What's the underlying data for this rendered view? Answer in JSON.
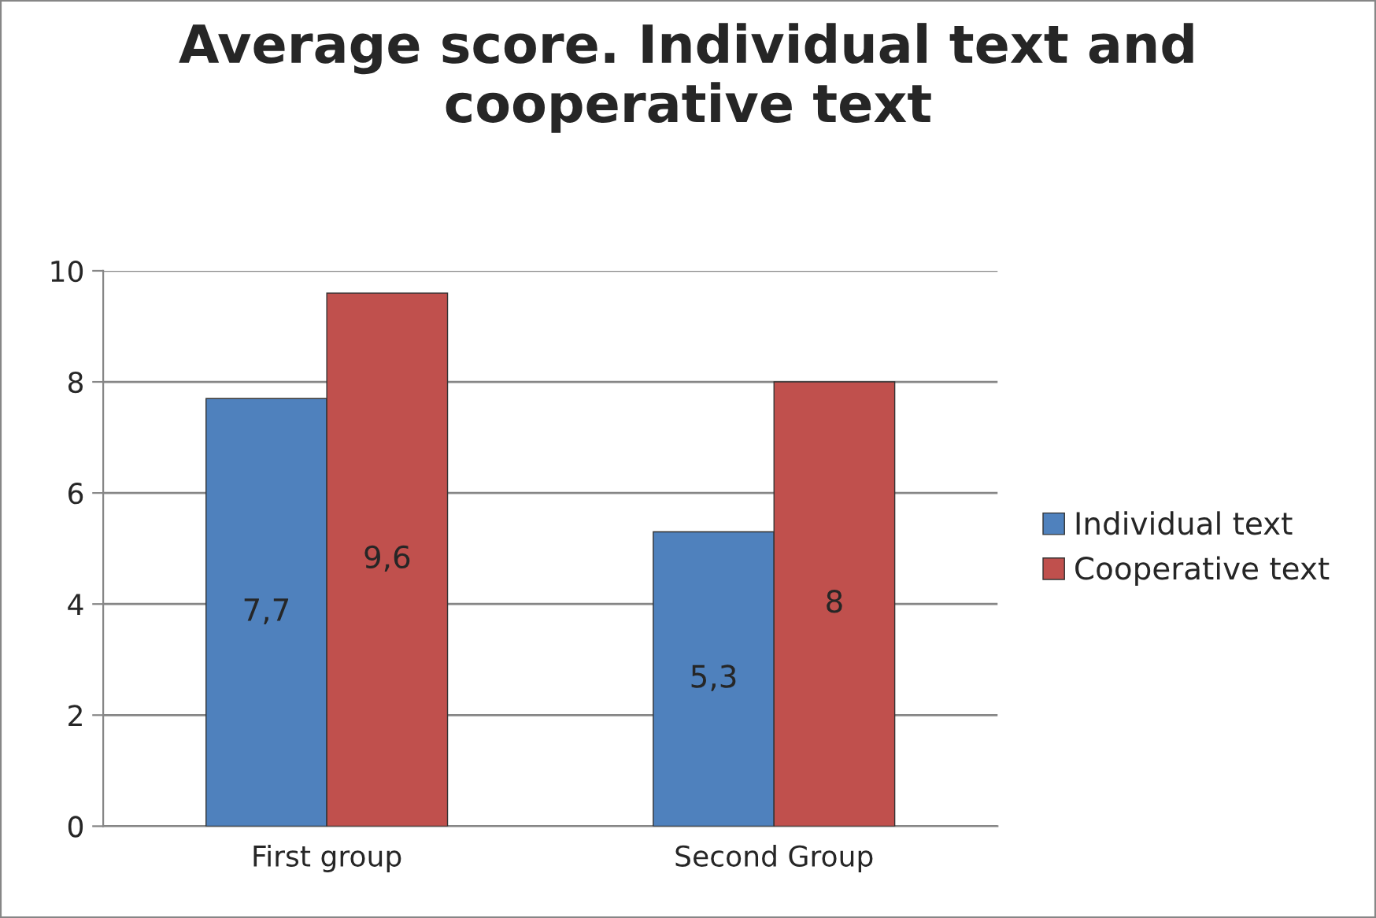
{
  "chart_data": {
    "type": "bar",
    "title": "Average score. Individual text and cooperative text",
    "categories": [
      "First group",
      "Second Group"
    ],
    "series": [
      {
        "name": "Individual text",
        "color": "#4f81bd",
        "values": [
          7.7,
          5.3
        ],
        "value_labels": [
          "7,7",
          "5,3"
        ]
      },
      {
        "name": "Cooperative text",
        "color": "#c0504d",
        "values": [
          9.6,
          8
        ],
        "value_labels": [
          "9,6",
          "8"
        ]
      }
    ],
    "ylim": [
      0,
      10
    ],
    "yticks": [
      0,
      2,
      4,
      6,
      8,
      10
    ],
    "grid": "y",
    "legend": "right"
  }
}
